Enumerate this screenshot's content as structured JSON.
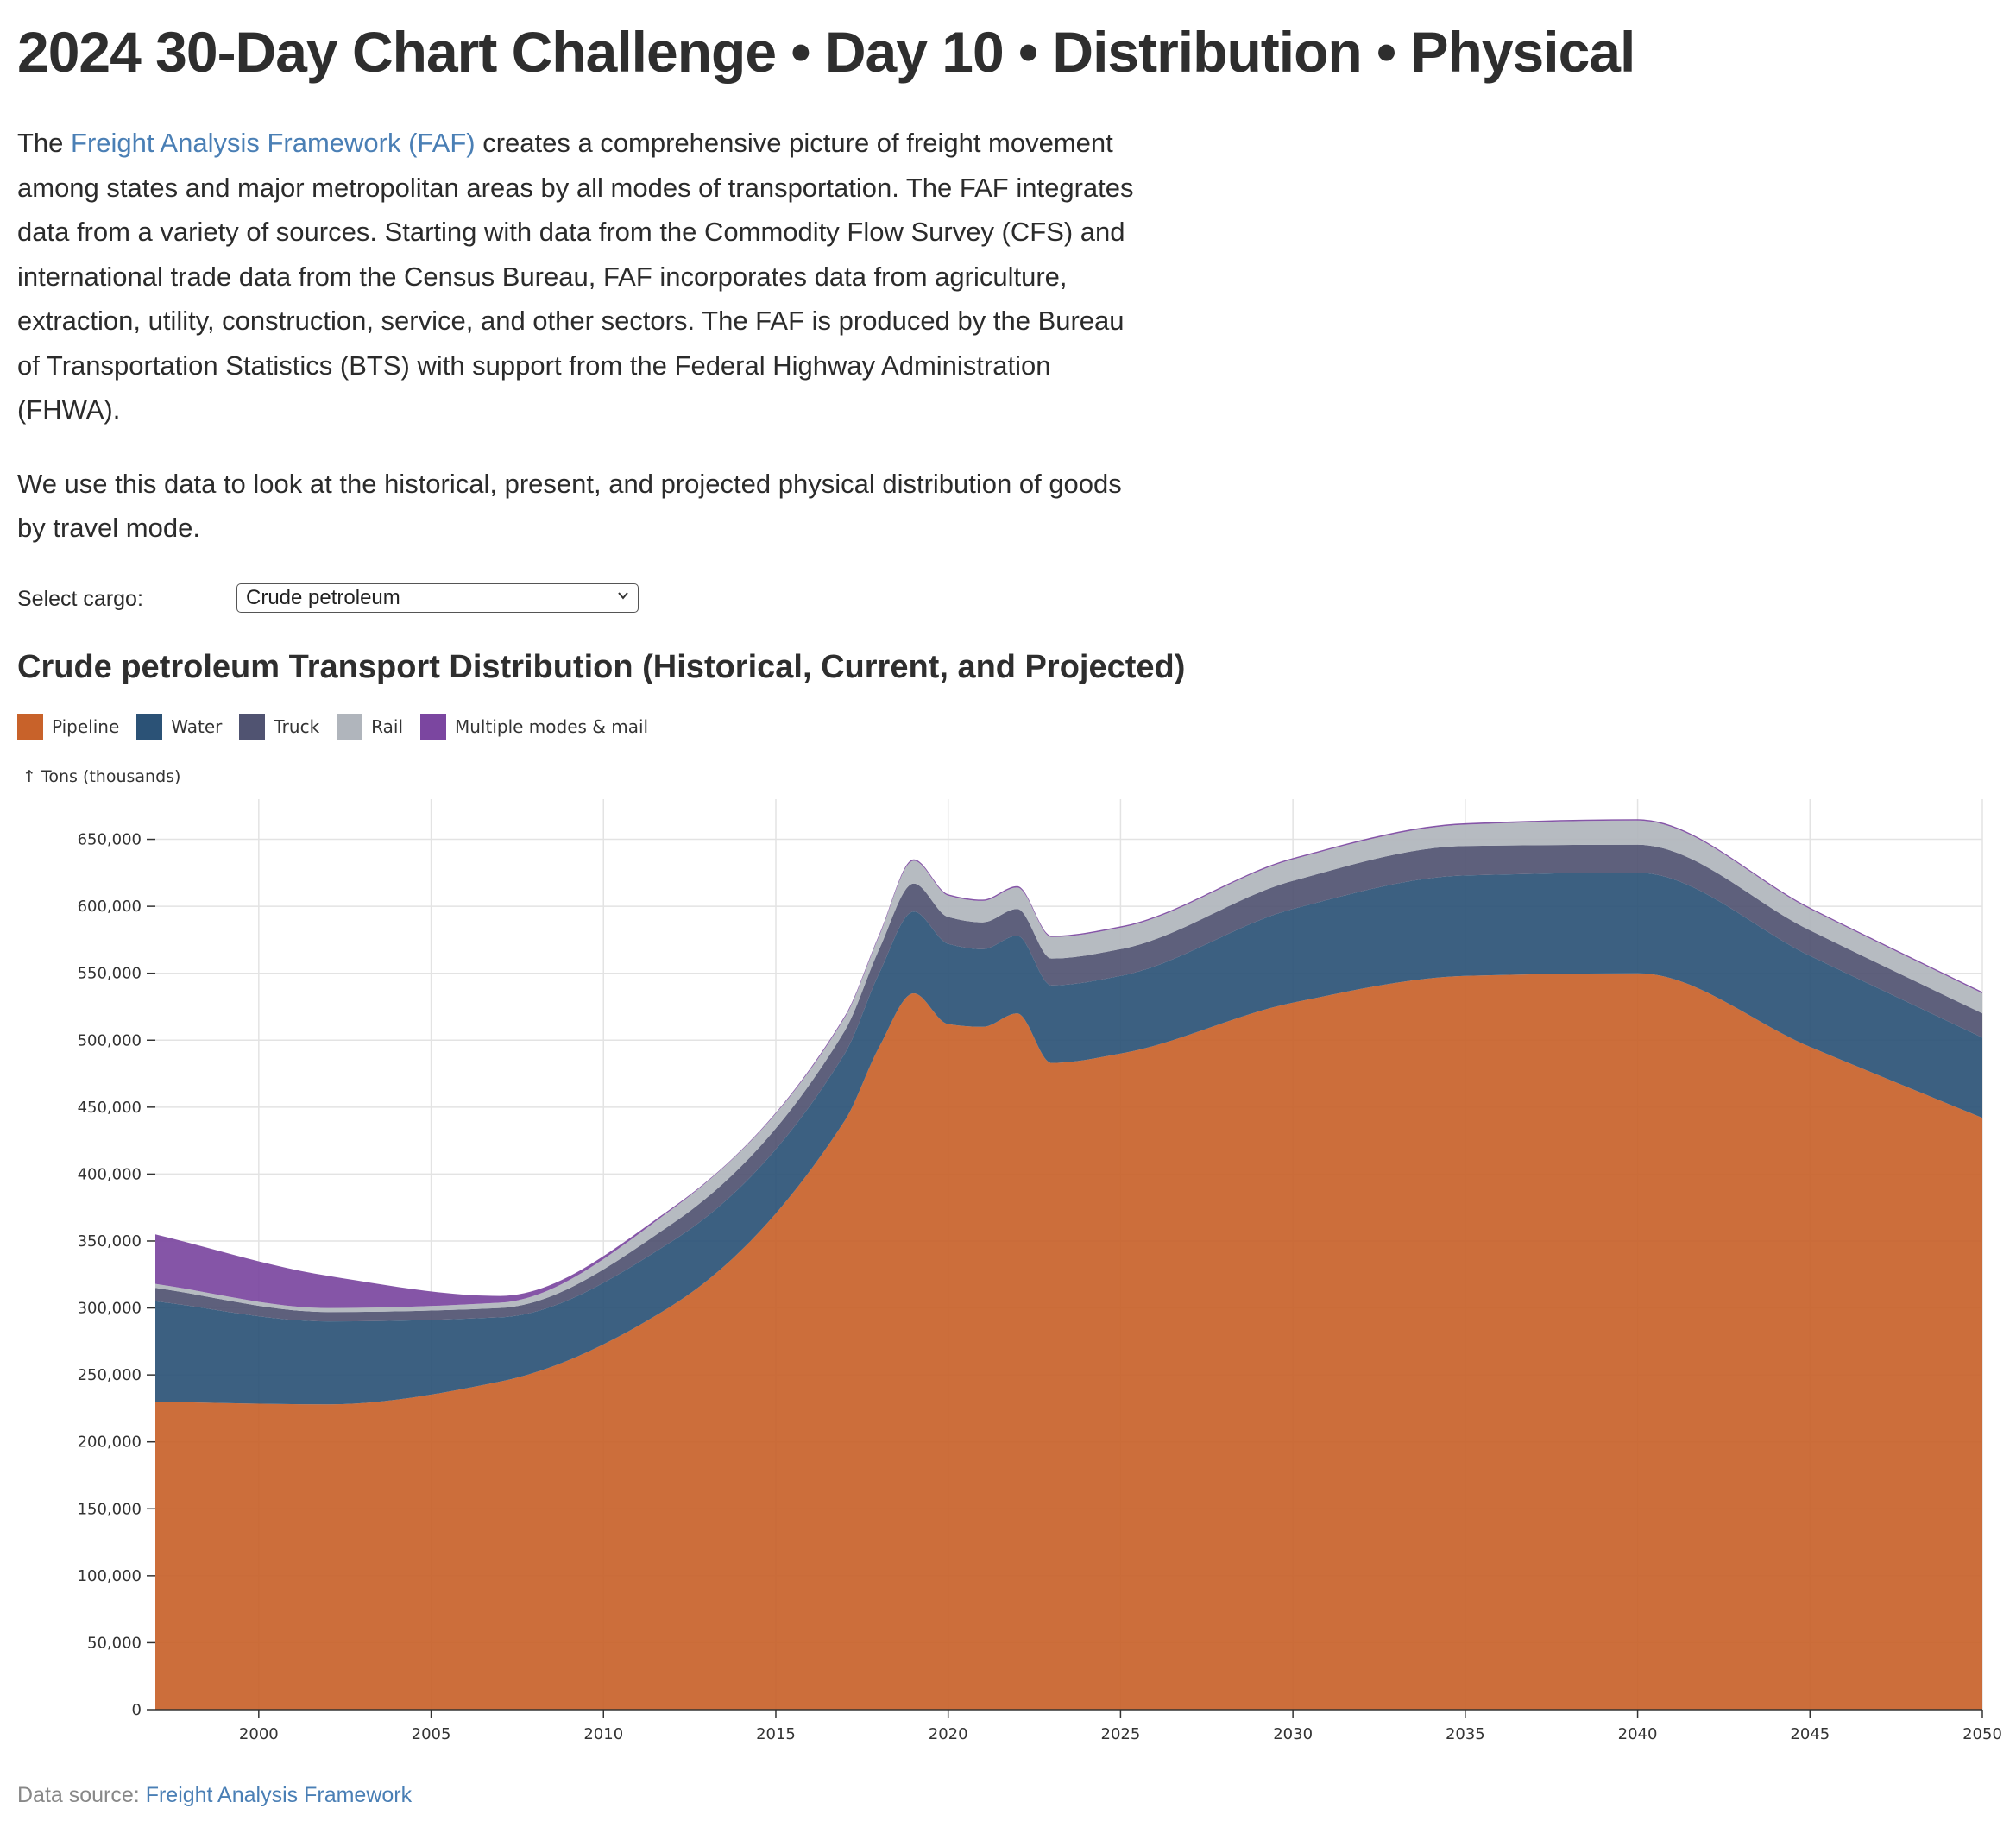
{
  "page": {
    "title": "2024 30-Day Chart Challenge • Day 10 • Distribution • Physical",
    "intro": {
      "p1_before_link": "The ",
      "link_text": "Freight Analysis Framework (FAF)",
      "p1_after_link": " creates a comprehensive picture of freight movement among states and major metropolitan areas by all modes of transportation. The FAF integrates data from a variety of sources. Starting with data from the Commodity Flow Survey (CFS) and international trade data from the Census Bureau, FAF incorporates data from agriculture, extraction, utility, construction, service, and other sectors. The FAF is produced by the Bureau of Transportation Statistics (BTS) with support from the Federal Highway Administration (FHWA).",
      "p2": "We use this data to look at the historical, present, and projected physical distribution of goods by travel mode."
    },
    "cargo_select": {
      "label": "Select cargo:",
      "selected": "Crude petroleum"
    },
    "footer": {
      "prefix": "Data source: ",
      "link_text": "Freight Analysis Framework"
    }
  },
  "chart_data": {
    "type": "area",
    "stacked": true,
    "title": "Crude petroleum Transport Distribution (Historical, Current, and Projected)",
    "ylabel": "↑ Tons (thousands)",
    "xlim": [
      1997,
      2050
    ],
    "ylim": [
      0,
      680000
    ],
    "x_ticks": [
      2000,
      2005,
      2010,
      2015,
      2020,
      2025,
      2030,
      2035,
      2040,
      2045,
      2050
    ],
    "y_ticks": [
      0,
      50000,
      100000,
      150000,
      200000,
      250000,
      300000,
      350000,
      400000,
      450000,
      500000,
      550000,
      600000,
      650000
    ],
    "grid": true,
    "legend_position": "top-left",
    "x": [
      1997,
      2002,
      2007,
      2012,
      2017,
      2018,
      2019,
      2020,
      2021,
      2022,
      2023,
      2025,
      2030,
      2035,
      2040,
      2045,
      2050
    ],
    "series": [
      {
        "name": "Pipeline",
        "color": "#c8622a",
        "values": [
          230000,
          228000,
          245000,
          302000,
          440000,
          495000,
          535000,
          512000,
          510000,
          520000,
          483000,
          490000,
          528000,
          548000,
          550000,
          495000,
          442000
        ]
      },
      {
        "name": "Water",
        "color": "#2b5276",
        "values": [
          75000,
          62000,
          48000,
          48000,
          50000,
          55000,
          61000,
          60000,
          58000,
          58000,
          58000,
          58000,
          70000,
          75000,
          75000,
          68000,
          60000
        ]
      },
      {
        "name": "Truck",
        "color": "#505371",
        "values": [
          10000,
          7000,
          7000,
          13000,
          17000,
          18000,
          21000,
          20000,
          20000,
          20000,
          20000,
          20000,
          21000,
          22000,
          21000,
          19000,
          18000
        ]
      },
      {
        "name": "Rail",
        "color": "#b0b5bc",
        "values": [
          3000,
          3000,
          4000,
          11000,
          10000,
          10000,
          17000,
          16000,
          16000,
          16000,
          16000,
          16000,
          16000,
          16000,
          18000,
          16000,
          15000
        ]
      },
      {
        "name": "Multiple modes & mail",
        "color": "#7b46a0",
        "values": [
          37000,
          24000,
          5000,
          1000,
          1000,
          1000,
          1000,
          1000,
          1000,
          1000,
          1000,
          1000,
          1000,
          1000,
          1000,
          1000,
          1000
        ]
      }
    ]
  }
}
